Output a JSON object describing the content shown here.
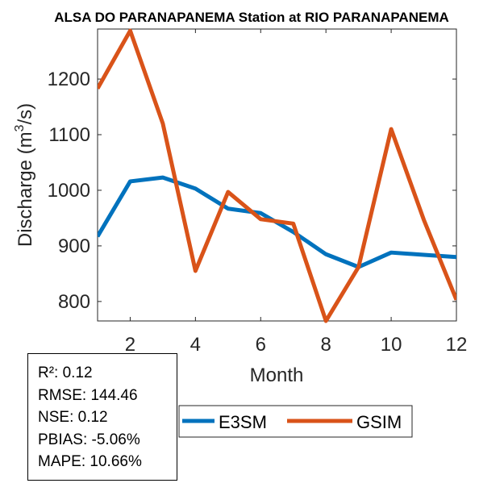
{
  "chart_data": {
    "type": "line",
    "title": "ALSA DO PARANAPANEMA  Station at  RIO PARANAPANEMA",
    "xlabel": "Month",
    "ylabel": "Discharge (m³/s)",
    "ylabel_parts": {
      "main": "Discharge (m",
      "sup": "3",
      "end": "/s)"
    },
    "x": [
      1,
      2,
      3,
      4,
      5,
      6,
      7,
      8,
      9,
      10,
      11,
      12
    ],
    "xlim": [
      1,
      12
    ],
    "ylim": [
      765,
      1290
    ],
    "xticks": [
      2,
      4,
      6,
      8,
      10,
      12
    ],
    "yticks": [
      800,
      900,
      1000,
      1100,
      1200
    ],
    "legend": "bottom-center",
    "series": [
      {
        "name": "E3SM",
        "color": "#0072BD",
        "values": [
          917,
          1016,
          1023,
          1003,
          967,
          959,
          925,
          885,
          862,
          888,
          884,
          880
        ]
      },
      {
        "name": "GSIM",
        "color": "#D95319",
        "values": [
          1183,
          1287,
          1120,
          855,
          997,
          948,
          940,
          765,
          862,
          1110,
          947,
          803
        ]
      }
    ]
  },
  "stats": {
    "r2": "R²: 0.12",
    "rmse": "RMSE: 144.46",
    "nse": "NSE: 0.12",
    "pbias": "PBIAS: -5.06%",
    "mape": "MAPE: 10.66%"
  }
}
